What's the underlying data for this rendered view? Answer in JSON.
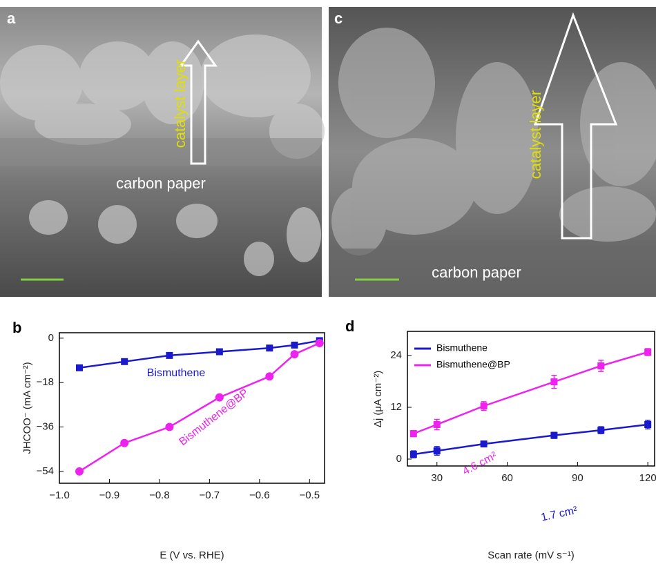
{
  "images": [
    {
      "panel": "a",
      "labels": [
        "catalyst layer",
        "carbon paper"
      ]
    },
    {
      "panel": "c",
      "labels": [
        "catalyst layer",
        "carbon paper"
      ]
    }
  ],
  "chart_data": [
    {
      "type": "line",
      "panel": "b",
      "x_label": "E (V vs. RHE)",
      "y_label": "JHCOO⁻ (mA cm⁻²)",
      "xlim": [
        -1.0,
        -0.47
      ],
      "ylim": [
        -58.8,
        2.2
      ],
      "xticks": [
        {
          "value": -1.0,
          "label": "−1.0"
        },
        {
          "value": -0.9,
          "label": "−0.9"
        },
        {
          "value": -0.8,
          "label": "−0.8"
        },
        {
          "value": -0.7,
          "label": "−0.7"
        },
        {
          "value": -0.6,
          "label": "−0.6"
        },
        {
          "value": -0.5,
          "label": "−0.5"
        }
      ],
      "yticks": [
        0,
        {
          "value": -18,
          "label": "−18"
        },
        {
          "value": -36,
          "label": "−36"
        },
        {
          "value": -54,
          "label": "−54"
        }
      ],
      "marker": "square-circle",
      "series": [
        {
          "name": "Bismuthene",
          "color": "#1a1acc",
          "x": [
            -0.96,
            -0.87,
            -0.78,
            -0.68,
            -0.58,
            -0.53,
            -0.48
          ],
          "values": [
            -12,
            -9.5,
            -7,
            -5.5,
            -4,
            -2.8,
            -1
          ]
        },
        {
          "name": "Bismuthene@BP",
          "color": "#ee22ee",
          "x": [
            -0.96,
            -0.87,
            -0.78,
            -0.68,
            -0.58,
            -0.53,
            -0.48
          ],
          "values": [
            -54,
            -42.5,
            -36,
            -24,
            -15.5,
            -6.5,
            -2
          ]
        }
      ]
    },
    {
      "type": "line",
      "panel": "d",
      "x_label": "Scan rate (mV s⁻¹)",
      "y_label": "Δj (μA cm⁻²)",
      "xlim": [
        17.4,
        122.9
      ],
      "ylim": [
        -1.6,
        29.6
      ],
      "xticks": [
        30,
        60,
        90,
        120
      ],
      "yticks": [
        0,
        12,
        24
      ],
      "legend": "upper left",
      "annotations": [
        "4.6 cm²",
        "1.7 cm²"
      ],
      "series": [
        {
          "name": "Bismuthene",
          "color": "#1a1acc",
          "x": [
            20,
            30,
            50,
            80,
            100,
            120
          ],
          "values": [
            1.1,
            1.9,
            3.5,
            5.5,
            6.7,
            8.0
          ],
          "errors": [
            0.8,
            1.0,
            0.6,
            0.7,
            0.8,
            1.0
          ]
        },
        {
          "name": "Bismuthene@BP",
          "color": "#ee22ee",
          "x": [
            20,
            30,
            50,
            80,
            100,
            120
          ],
          "values": [
            5.9,
            8.0,
            12.3,
            17.9,
            21.6,
            24.8
          ],
          "errors": [
            0.7,
            1.2,
            1.0,
            1.5,
            1.3,
            0.8
          ]
        }
      ]
    }
  ]
}
